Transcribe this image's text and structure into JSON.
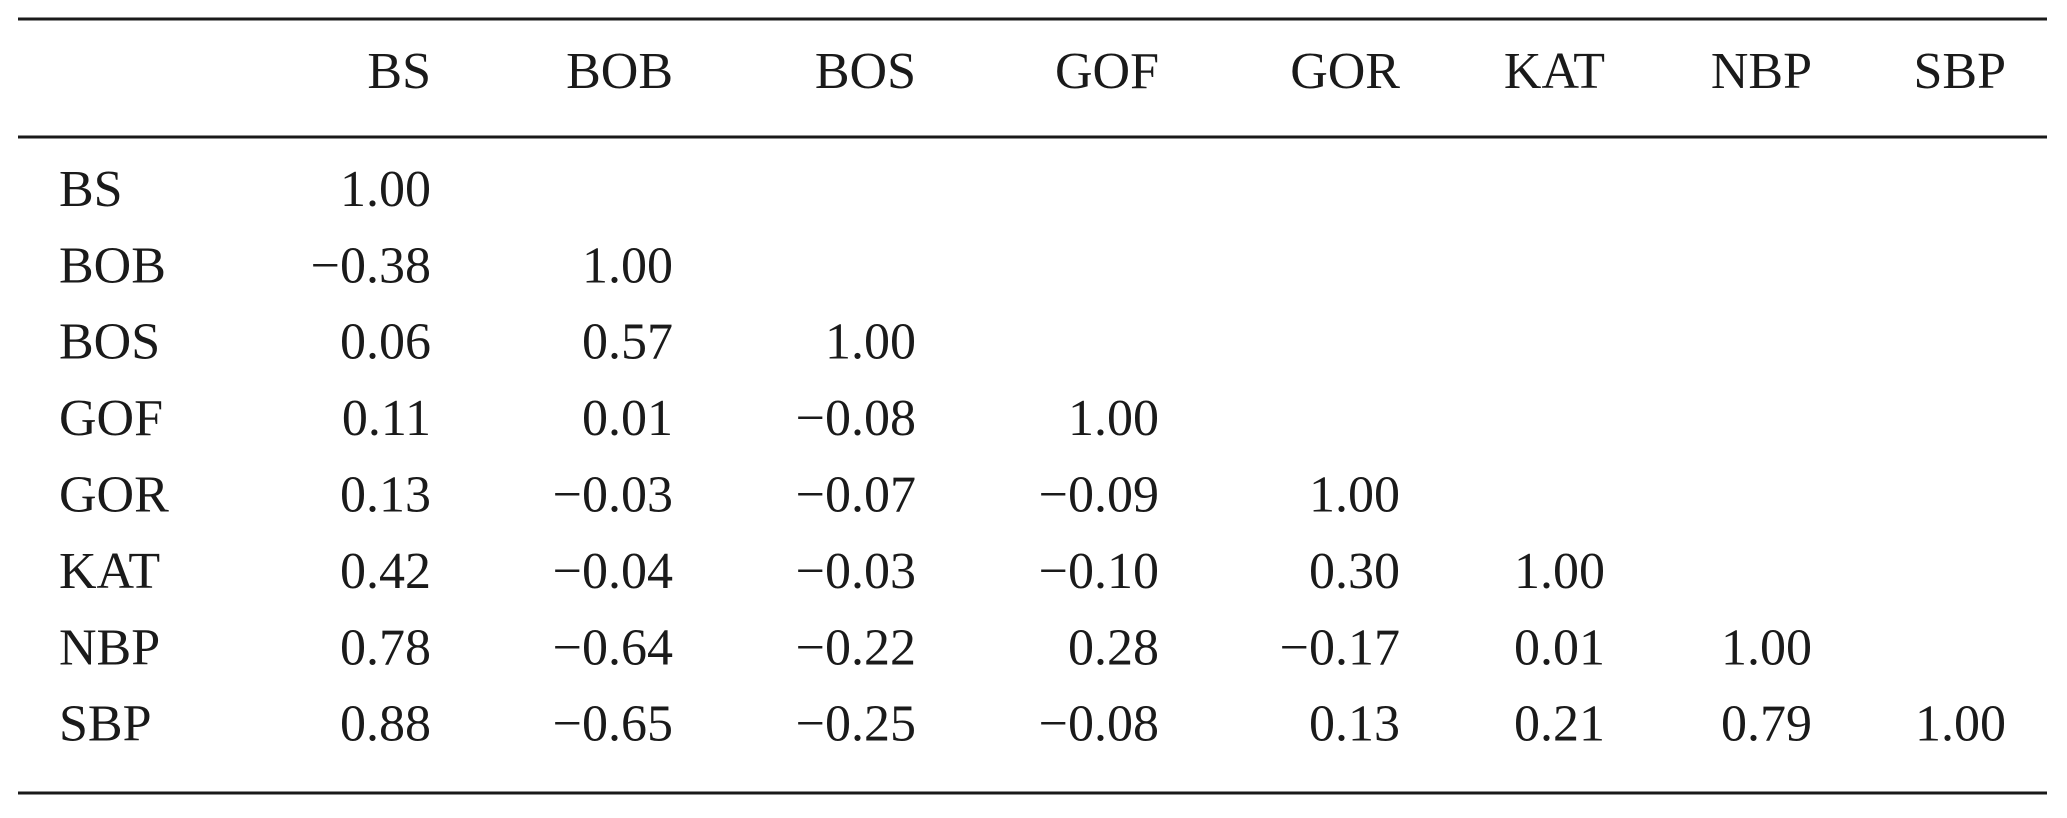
{
  "table": {
    "columns": [
      "BS",
      "BOB",
      "BOS",
      "GOF",
      "GOR",
      "KAT",
      "NBP",
      "SBP"
    ],
    "rows": [
      {
        "label": "BS",
        "cells": [
          "1.00"
        ]
      },
      {
        "label": "BOB",
        "cells": [
          "−0.38",
          "1.00"
        ]
      },
      {
        "label": "BOS",
        "cells": [
          "0.06",
          "0.57",
          "1.00"
        ]
      },
      {
        "label": "GOF",
        "cells": [
          "0.11",
          "0.01",
          "−0.08",
          "1.00"
        ]
      },
      {
        "label": "GOR",
        "cells": [
          "0.13",
          "−0.03",
          "−0.07",
          "−0.09",
          "1.00"
        ]
      },
      {
        "label": "KAT",
        "cells": [
          "0.42",
          "−0.04",
          "−0.03",
          "−0.10",
          "0.30",
          "1.00"
        ]
      },
      {
        "label": "NBP",
        "cells": [
          "0.78",
          "−0.64",
          "−0.22",
          "0.28",
          "−0.17",
          "0.01",
          "1.00"
        ]
      },
      {
        "label": "SBP",
        "cells": [
          "0.88",
          "−0.65",
          "−0.25",
          "−0.08",
          "0.13",
          "0.21",
          "0.79",
          "1.00"
        ]
      }
    ]
  }
}
